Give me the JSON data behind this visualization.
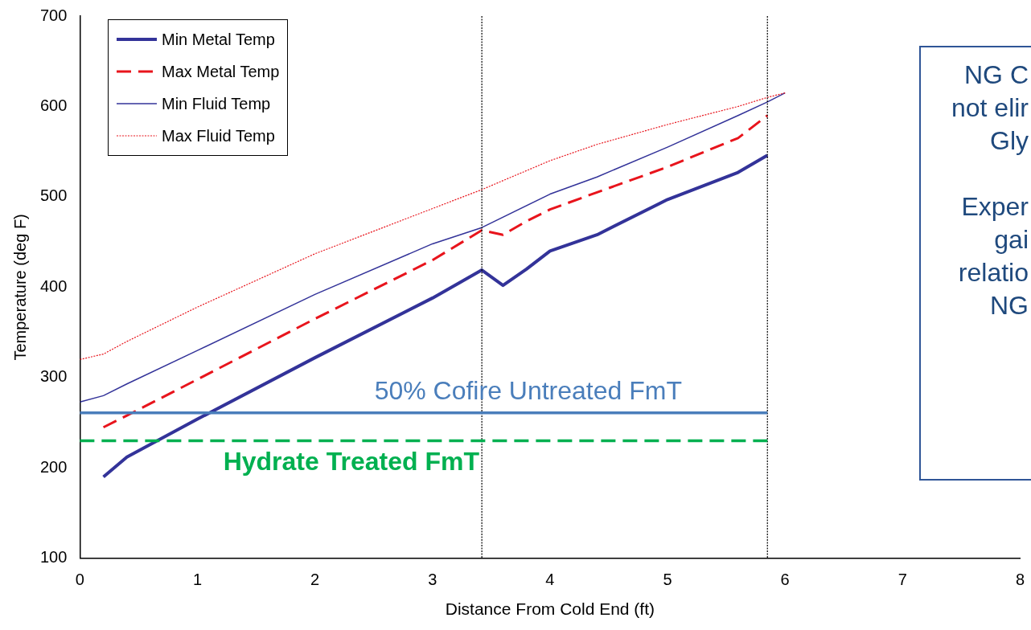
{
  "chart_data": {
    "type": "line",
    "xlabel": "Distance From Cold End (ft)",
    "ylabel": "Temperature (deg F)",
    "xlim": [
      0,
      8
    ],
    "xticks": [
      0,
      1,
      2,
      3,
      4,
      5,
      6,
      7,
      8
    ],
    "ylim": [
      100,
      700
    ],
    "yticks": [
      100,
      200,
      300,
      400,
      500,
      600,
      700
    ],
    "grid": false,
    "legend": "top left",
    "marker": "none",
    "series": [
      {
        "name": "Min Metal Temp",
        "color": "#333399",
        "line_style": "solid",
        "x": [
          0.2,
          0.4,
          1,
          2,
          3,
          3.42,
          3.6,
          3.8,
          4,
          4.4,
          5,
          5.2,
          5.6,
          5.85
        ],
        "values": [
          190,
          212,
          254,
          322,
          388,
          419,
          402,
          420,
          440,
          458,
          497,
          507,
          527,
          546
        ]
      },
      {
        "name": "Max Metal Temp",
        "color": "#e8141c",
        "line_style": "dashed",
        "x": [
          0.2,
          0.4,
          1,
          2,
          3,
          3.42,
          3.6,
          3.8,
          4,
          4.4,
          5,
          5.6,
          5.85
        ],
        "values": [
          245,
          258,
          298,
          365,
          430,
          463,
          458,
          473,
          486,
          505,
          533,
          565,
          590
        ]
      },
      {
        "name": "Min Fluid Temp",
        "color": "#333399",
        "line_style": "solid",
        "x": [
          0,
          0.2,
          0.4,
          1,
          2,
          3,
          3.42,
          4,
          4.4,
          5,
          5.6,
          5.85,
          6
        ],
        "values": [
          273,
          280,
          293,
          330,
          392,
          448,
          466,
          503,
          522,
          555,
          590,
          605,
          615
        ]
      },
      {
        "name": "Max Fluid Temp",
        "color": "#e8141c",
        "line_style": "dotted",
        "x": [
          0,
          0.2,
          0.4,
          1,
          2,
          3,
          3.42,
          4,
          4.4,
          5,
          5.6,
          5.85,
          6
        ],
        "values": [
          320,
          326,
          340,
          378,
          437,
          487,
          508,
          540,
          558,
          580,
          600,
          610,
          615
        ]
      }
    ],
    "ref_lines": [
      {
        "axis": "x",
        "value": 3.42,
        "color": "#000000",
        "line_style": "dotted"
      },
      {
        "axis": "x",
        "value": 5.85,
        "color": "#000000",
        "line_style": "dotted"
      },
      {
        "axis": "y",
        "value": 261,
        "label": "50% Cofire Untreated FmT",
        "color": "#4a7ebb",
        "line_style": "solid"
      },
      {
        "axis": "y",
        "value": 230,
        "label": "Hydrate Treated FmT",
        "color": "#00b050",
        "line_style": "dashed"
      }
    ],
    "annotations": [
      "NG C\nnot elir\nGly\n\nExper\ngai\nrelatio\nNG"
    ]
  }
}
